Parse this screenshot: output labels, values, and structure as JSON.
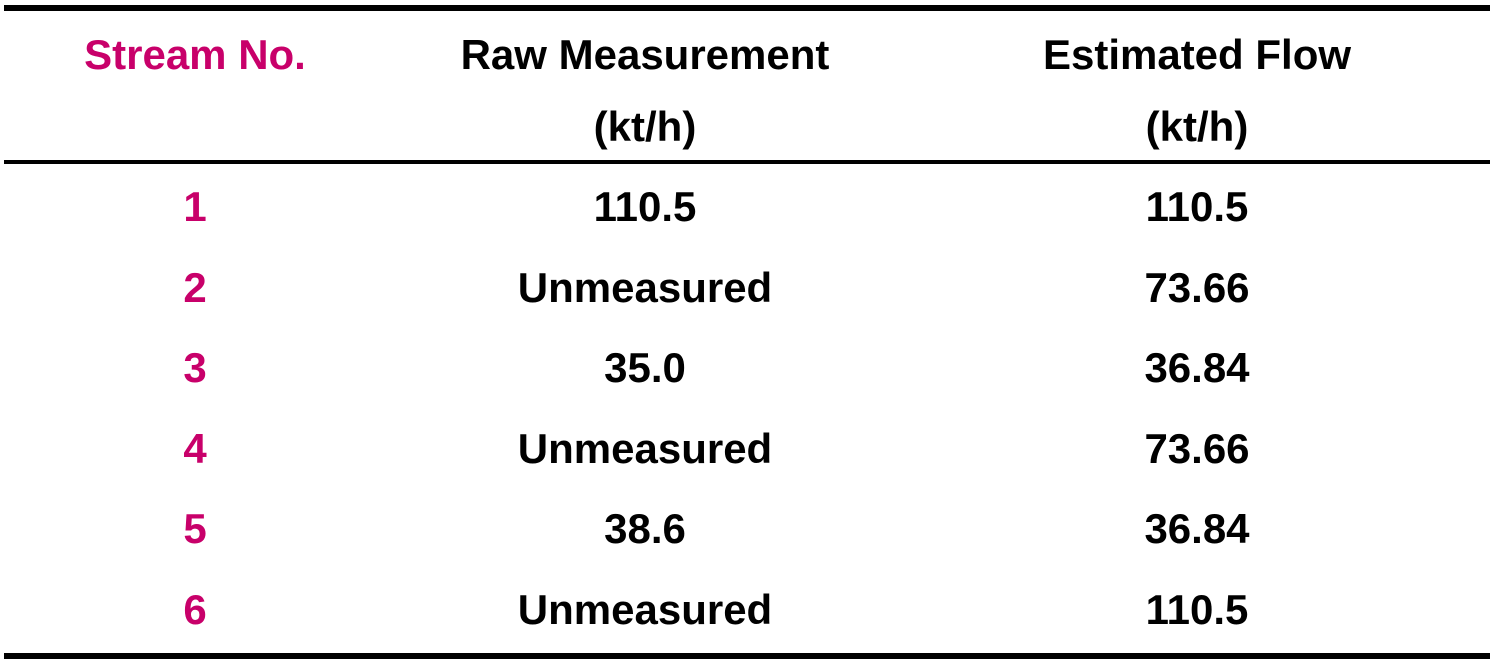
{
  "colors": {
    "accent": "#c8006a",
    "text": "#000000",
    "background": "#ffffff"
  },
  "header": {
    "stream_no": "Stream No.",
    "raw_measurement": [
      "Raw Measurement",
      "(kt/h)"
    ],
    "estimated_flow": [
      "Estimated Flow",
      "(kt/h)"
    ]
  },
  "rows": [
    {
      "stream": "1",
      "raw": "110.5",
      "estimated": "110.5"
    },
    {
      "stream": "2",
      "raw": "Unmeasured",
      "estimated": "73.66"
    },
    {
      "stream": "3",
      "raw": "35.0",
      "estimated": "36.84"
    },
    {
      "stream": "4",
      "raw": "Unmeasured",
      "estimated": "73.66"
    },
    {
      "stream": "5",
      "raw": "38.6",
      "estimated": "36.84"
    },
    {
      "stream": "6",
      "raw": "Unmeasured",
      "estimated": "110.5"
    }
  ]
}
